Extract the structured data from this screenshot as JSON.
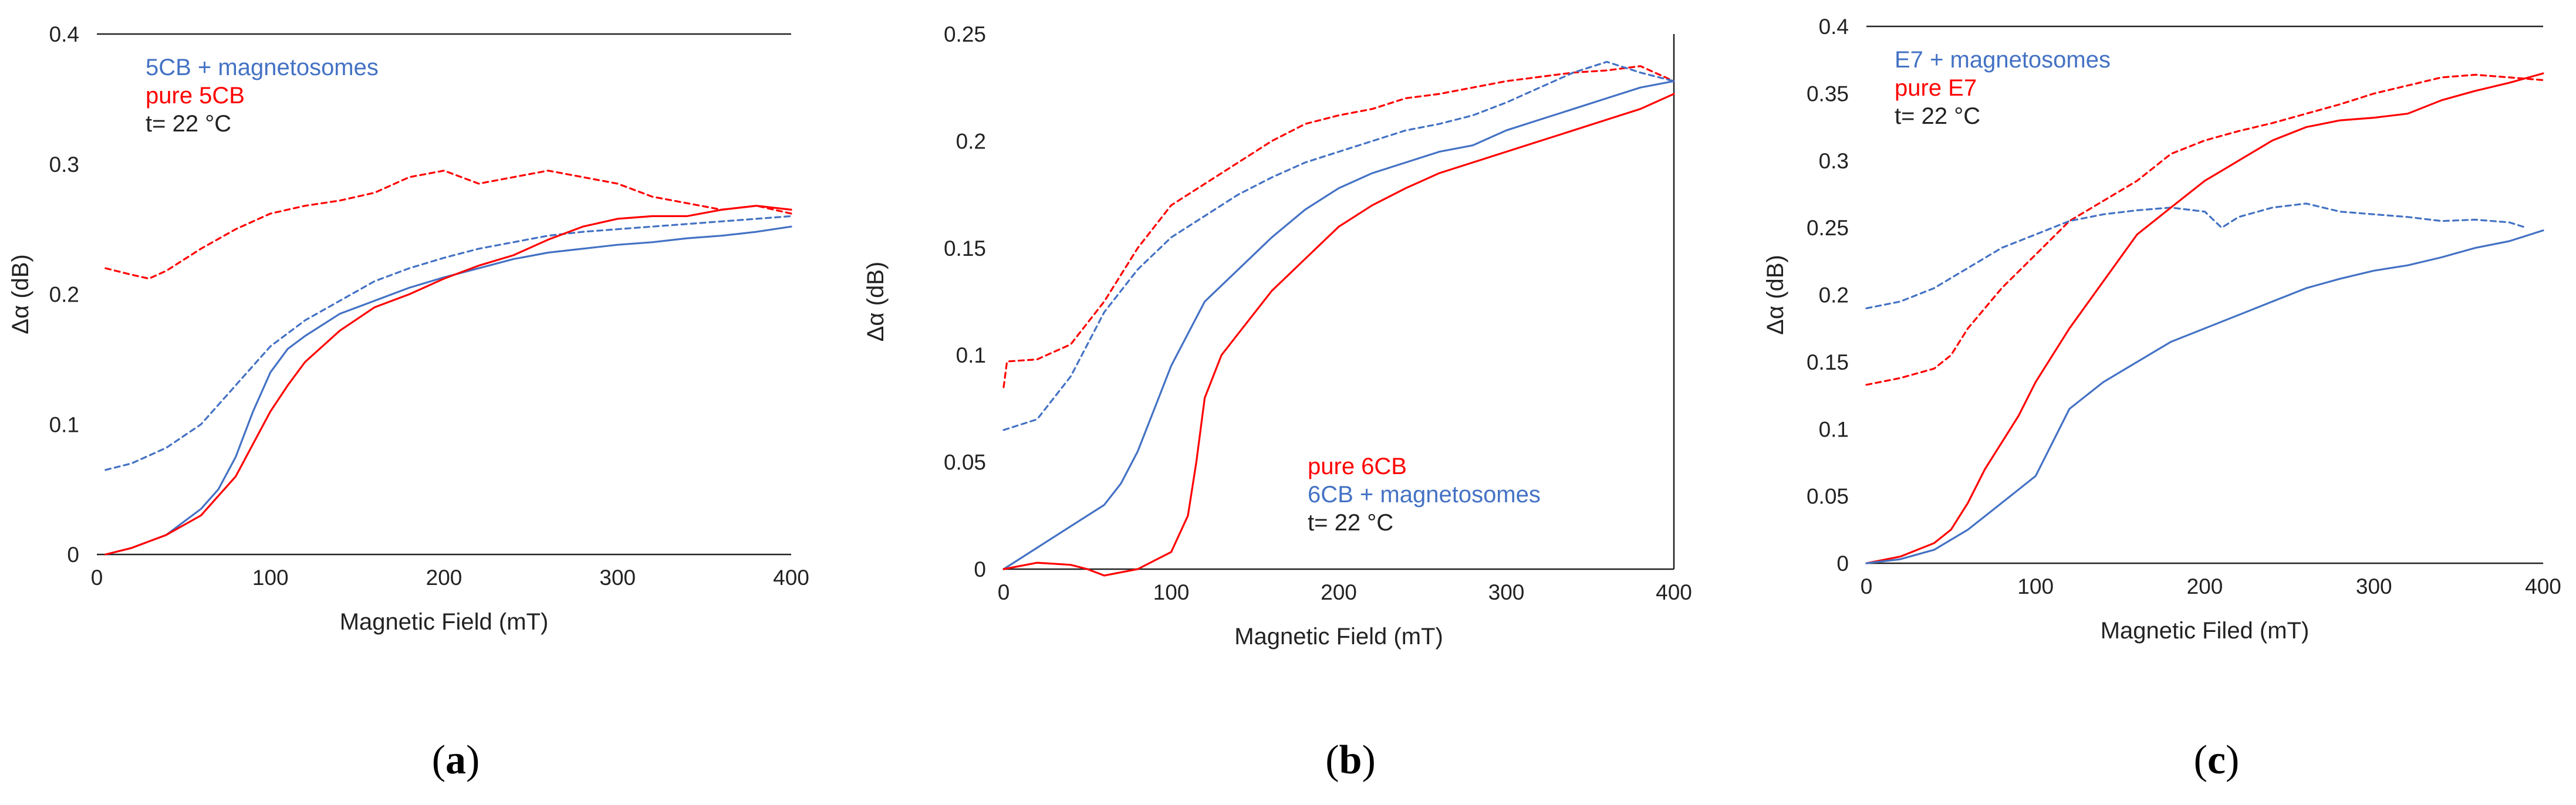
{
  "colors": {
    "blue": "#4472c4",
    "red": "#ff0000",
    "text": "#222222"
  },
  "chart_data": [
    {
      "type": "line",
      "panel_label": "a",
      "xlabel": "Magnetic Field (mT)",
      "ylabel": "Δα (dB)",
      "xlim": [
        0,
        400
      ],
      "ylim": [
        0,
        0.4
      ],
      "xticks": [
        "0",
        "100",
        "200",
        "300",
        "400"
      ],
      "yticks": [
        "0",
        "0.1",
        "0.2",
        "0.3",
        "0.4"
      ],
      "legend": [
        {
          "text": "5CB + magnetosomes",
          "color": "#4472c4"
        },
        {
          "text": "pure 5CB",
          "color": "#ff0000"
        },
        {
          "text": "t= 22 °C",
          "color": "#222222"
        }
      ],
      "series": [
        {
          "name": "5CB + magnetosomes (dashed)",
          "color": "#4472c4",
          "style": "dashed",
          "x": [
            5,
            20,
            40,
            60,
            80,
            100,
            120,
            140,
            160,
            180,
            200,
            220,
            240,
            260,
            280,
            300,
            320,
            340,
            360,
            380,
            400
          ],
          "y": [
            0.065,
            0.07,
            0.082,
            0.1,
            0.13,
            0.16,
            0.18,
            0.195,
            0.21,
            0.22,
            0.228,
            0.235,
            0.24,
            0.245,
            0.248,
            0.25,
            0.252,
            0.254,
            0.256,
            0.258,
            0.26
          ]
        },
        {
          "name": "pure 5CB (dashed)",
          "color": "#ff0000",
          "style": "dashed",
          "x": [
            5,
            20,
            30,
            40,
            60,
            80,
            100,
            120,
            140,
            160,
            180,
            200,
            220,
            240,
            260,
            280,
            300,
            320,
            340,
            360,
            380,
            400
          ],
          "y": [
            0.22,
            0.215,
            0.212,
            0.218,
            0.235,
            0.25,
            0.262,
            0.268,
            0.272,
            0.278,
            0.29,
            0.295,
            0.285,
            0.29,
            0.295,
            0.29,
            0.285,
            0.275,
            0.27,
            0.265,
            0.268,
            0.262
          ]
        },
        {
          "name": "5CB + magnetosomes (solid)",
          "color": "#4472c4",
          "style": "solid",
          "x": [
            5,
            20,
            40,
            60,
            70,
            80,
            90,
            100,
            110,
            120,
            140,
            160,
            180,
            200,
            220,
            240,
            260,
            280,
            300,
            320,
            340,
            360,
            380,
            400
          ],
          "y": [
            0,
            0.005,
            0.015,
            0.035,
            0.05,
            0.075,
            0.11,
            0.14,
            0.158,
            0.168,
            0.185,
            0.195,
            0.205,
            0.213,
            0.22,
            0.227,
            0.232,
            0.235,
            0.238,
            0.24,
            0.243,
            0.245,
            0.248,
            0.252
          ]
        },
        {
          "name": "pure 5CB (solid)",
          "color": "#ff0000",
          "style": "solid",
          "x": [
            5,
            20,
            40,
            60,
            70,
            80,
            90,
            100,
            110,
            120,
            140,
            160,
            180,
            200,
            220,
            240,
            260,
            280,
            300,
            320,
            340,
            360,
            380,
            400
          ],
          "y": [
            0,
            0.005,
            0.015,
            0.03,
            0.045,
            0.06,
            0.085,
            0.11,
            0.13,
            0.148,
            0.172,
            0.19,
            0.2,
            0.212,
            0.222,
            0.23,
            0.242,
            0.252,
            0.258,
            0.26,
            0.26,
            0.265,
            0.268,
            0.265
          ]
        }
      ]
    },
    {
      "type": "line",
      "panel_label": "b",
      "xlabel": "Magnetic Field (mT)",
      "ylabel": "Δα (dB)",
      "xlim": [
        0,
        400
      ],
      "ylim": [
        0,
        0.25
      ],
      "xticks": [
        "0",
        "100",
        "200",
        "300",
        "400"
      ],
      "yticks": [
        "0",
        "0.05",
        "0.1",
        "0.15",
        "0.2",
        "0.25"
      ],
      "legend": [
        {
          "text": "pure 6CB",
          "color": "#ff0000"
        },
        {
          "text": "6CB + magnetosomes",
          "color": "#4472c4"
        },
        {
          "text": "t= 22 °C",
          "color": "#222222"
        }
      ],
      "series": [
        {
          "name": "pure 6CB (dashed)",
          "color": "#ff0000",
          "style": "dashed",
          "x": [
            0,
            2,
            20,
            40,
            60,
            80,
            100,
            120,
            140,
            160,
            180,
            200,
            220,
            240,
            260,
            280,
            300,
            320,
            340,
            360,
            380,
            400
          ],
          "y": [
            0.085,
            0.097,
            0.098,
            0.105,
            0.125,
            0.15,
            0.17,
            0.18,
            0.19,
            0.2,
            0.208,
            0.212,
            0.215,
            0.22,
            0.222,
            0.225,
            0.228,
            0.23,
            0.232,
            0.233,
            0.235,
            0.228
          ]
        },
        {
          "name": "6CB + magnetosomes (dashed)",
          "color": "#4472c4",
          "style": "dashed",
          "x": [
            0,
            20,
            40,
            60,
            80,
            100,
            120,
            140,
            160,
            180,
            200,
            220,
            240,
            260,
            280,
            300,
            320,
            340,
            360,
            380,
            400
          ],
          "y": [
            0.065,
            0.07,
            0.09,
            0.12,
            0.14,
            0.155,
            0.165,
            0.175,
            0.183,
            0.19,
            0.195,
            0.2,
            0.205,
            0.208,
            0.212,
            0.218,
            0.225,
            0.232,
            0.237,
            0.232,
            0.228
          ]
        },
        {
          "name": "6CB + magnetosomes (solid)",
          "color": "#4472c4",
          "style": "solid",
          "x": [
            0,
            20,
            40,
            60,
            70,
            80,
            90,
            100,
            110,
            120,
            140,
            160,
            180,
            200,
            220,
            240,
            260,
            280,
            300,
            320,
            340,
            360,
            380,
            400
          ],
          "y": [
            0,
            0.01,
            0.02,
            0.03,
            0.04,
            0.055,
            0.075,
            0.095,
            0.11,
            0.125,
            0.14,
            0.155,
            0.168,
            0.178,
            0.185,
            0.19,
            0.195,
            0.198,
            0.205,
            0.21,
            0.215,
            0.22,
            0.225,
            0.228
          ]
        },
        {
          "name": "pure 6CB (solid)",
          "color": "#ff0000",
          "style": "solid",
          "x": [
            0,
            20,
            40,
            50,
            60,
            80,
            100,
            110,
            115,
            120,
            130,
            140,
            160,
            180,
            200,
            220,
            240,
            260,
            280,
            300,
            320,
            340,
            360,
            380,
            400
          ],
          "y": [
            0,
            0.003,
            0.002,
            0,
            -0.003,
            0,
            0.008,
            0.025,
            0.05,
            0.08,
            0.1,
            0.11,
            0.13,
            0.145,
            0.16,
            0.17,
            0.178,
            0.185,
            0.19,
            0.195,
            0.2,
            0.205,
            0.21,
            0.215,
            0.222
          ]
        }
      ]
    },
    {
      "type": "line",
      "panel_label": "c",
      "xlabel": "Magnetic Filed (mT)",
      "ylabel": "Δα (dB)",
      "xlim": [
        0,
        400
      ],
      "ylim": [
        0,
        0.4
      ],
      "xticks": [
        "0",
        "100",
        "200",
        "300",
        "400"
      ],
      "yticks": [
        "0",
        "0.05",
        "0.1",
        "0.15",
        "0.2",
        "0.25",
        "0.3",
        "0.35",
        "0.4"
      ],
      "legend": [
        {
          "text": "E7 + magnetosomes",
          "color": "#4472c4"
        },
        {
          "text": "pure E7",
          "color": "#ff0000"
        },
        {
          "text": "t= 22 °C",
          "color": "#222222"
        }
      ],
      "series": [
        {
          "name": "pure E7 (dashed)",
          "color": "#ff0000",
          "style": "dashed",
          "x": [
            0,
            20,
            40,
            50,
            60,
            80,
            100,
            120,
            140,
            160,
            180,
            200,
            220,
            240,
            260,
            280,
            300,
            320,
            340,
            360,
            380,
            400
          ],
          "y": [
            0.133,
            0.138,
            0.145,
            0.155,
            0.175,
            0.205,
            0.23,
            0.255,
            0.27,
            0.285,
            0.305,
            0.315,
            0.322,
            0.328,
            0.335,
            0.342,
            0.35,
            0.356,
            0.362,
            0.364,
            0.362,
            0.36
          ]
        },
        {
          "name": "E7 + magnetosomes (dashed)",
          "color": "#4472c4",
          "style": "dashed",
          "x": [
            0,
            20,
            40,
            60,
            80,
            100,
            120,
            140,
            160,
            180,
            200,
            210,
            220,
            240,
            260,
            280,
            300,
            320,
            340,
            360,
            380,
            390
          ],
          "y": [
            0.19,
            0.195,
            0.205,
            0.22,
            0.235,
            0.245,
            0.255,
            0.26,
            0.263,
            0.265,
            0.262,
            0.25,
            0.258,
            0.265,
            0.268,
            0.262,
            0.26,
            0.258,
            0.255,
            0.256,
            0.254,
            0.25
          ]
        },
        {
          "name": "pure E7 (solid)",
          "color": "#ff0000",
          "style": "solid",
          "x": [
            0,
            20,
            40,
            50,
            60,
            70,
            80,
            90,
            100,
            120,
            140,
            160,
            180,
            200,
            220,
            240,
            260,
            280,
            300,
            320,
            340,
            360,
            380,
            400
          ],
          "y": [
            0,
            0.005,
            0.015,
            0.025,
            0.045,
            0.07,
            0.09,
            0.11,
            0.135,
            0.175,
            0.21,
            0.245,
            0.265,
            0.285,
            0.3,
            0.315,
            0.325,
            0.33,
            0.332,
            0.335,
            0.345,
            0.352,
            0.358,
            0.365
          ]
        },
        {
          "name": "E7 + magnetosomes (solid)",
          "color": "#4472c4",
          "style": "solid",
          "x": [
            0,
            20,
            40,
            60,
            80,
            100,
            110,
            120,
            140,
            160,
            180,
            200,
            220,
            240,
            260,
            280,
            300,
            320,
            340,
            360,
            380,
            400
          ],
          "y": [
            0,
            0.003,
            0.01,
            0.025,
            0.045,
            0.065,
            0.09,
            0.115,
            0.135,
            0.15,
            0.165,
            0.175,
            0.185,
            0.195,
            0.205,
            0.212,
            0.218,
            0.222,
            0.228,
            0.235,
            0.24,
            0.248
          ]
        }
      ]
    }
  ]
}
